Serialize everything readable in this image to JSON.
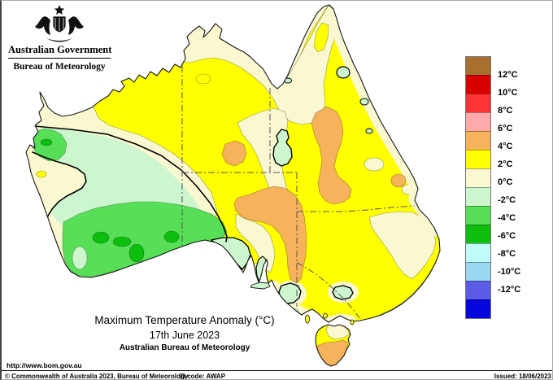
{
  "header": {
    "government": "Australian Government",
    "bureau": "Bureau of Meteorology"
  },
  "titles": {
    "main": "Maximum Temperature Anomaly (°C)",
    "date": "17th June 2023",
    "org": "Australian Bureau of Meteorology"
  },
  "legend": {
    "bands": [
      {
        "color": "#A8702E",
        "label": null
      },
      {
        "color": "#D90000",
        "label": "12°C"
      },
      {
        "color": "#FF3434",
        "label": "10°C"
      },
      {
        "color": "#FFAAAA",
        "label": "8°C"
      },
      {
        "color": "#F7B25C",
        "label": "6°C"
      },
      {
        "color": "#FFFF00",
        "label": "4°C"
      },
      {
        "color": "#FAF8D0",
        "label": "2°C"
      },
      {
        "color": "#CDF6CE",
        "label": "0°C"
      },
      {
        "color": "#57E057",
        "label": "-2°C"
      },
      {
        "color": "#0EBE0E",
        "label": "-4°C"
      },
      {
        "color": "#C2FBFB",
        "label": "-6°C"
      },
      {
        "color": "#9BD9F2",
        "label": "-8°C"
      },
      {
        "color": "#5B5BE6",
        "label": "-10°C"
      },
      {
        "color": "#0505DC",
        "label": "-12°C"
      }
    ]
  },
  "footer": {
    "url": "http://www.bom.gov.au",
    "copyright": "© Commonwealth of Australia 2023, Bureau of Meteorology",
    "id_code": "ID code: AWAP",
    "issued": "Issued: 18/06/2023"
  },
  "palette": {
    "sea": "#FFFFFF",
    "band_4_6": "#F7B25C",
    "band_2_4": "#FFFF00",
    "band_0_2": "#FAF8D0",
    "band_neg2_0": "#CDF6CE",
    "band_neg4_neg2": "#57E057",
    "band_neg6_neg4": "#0EBE0E",
    "coastline": "#151515",
    "state_border": "#555555",
    "zero_contour": "#000000"
  }
}
